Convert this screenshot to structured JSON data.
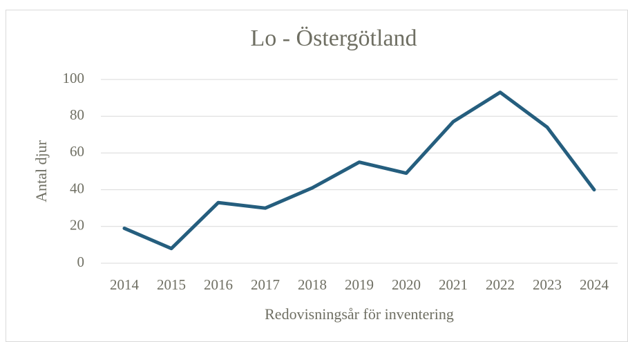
{
  "chart_data": {
    "type": "line",
    "title": "Lo - Östergötland",
    "x_label": "Redovisningsår för inventering",
    "y_label": "Antal djur",
    "categories": [
      "2014",
      "2015",
      "2016",
      "2017",
      "2018",
      "2019",
      "2020",
      "2021",
      "2022",
      "2023",
      "2024"
    ],
    "series": [
      {
        "name": "Lo",
        "color": "#255e7e",
        "values": [
          19,
          8,
          33,
          30,
          41,
          55,
          49,
          77,
          93,
          74,
          40
        ]
      }
    ],
    "ylim": [
      0,
      100
    ],
    "yticks": [
      0,
      20,
      40,
      60,
      80,
      100
    ],
    "grid": true
  }
}
